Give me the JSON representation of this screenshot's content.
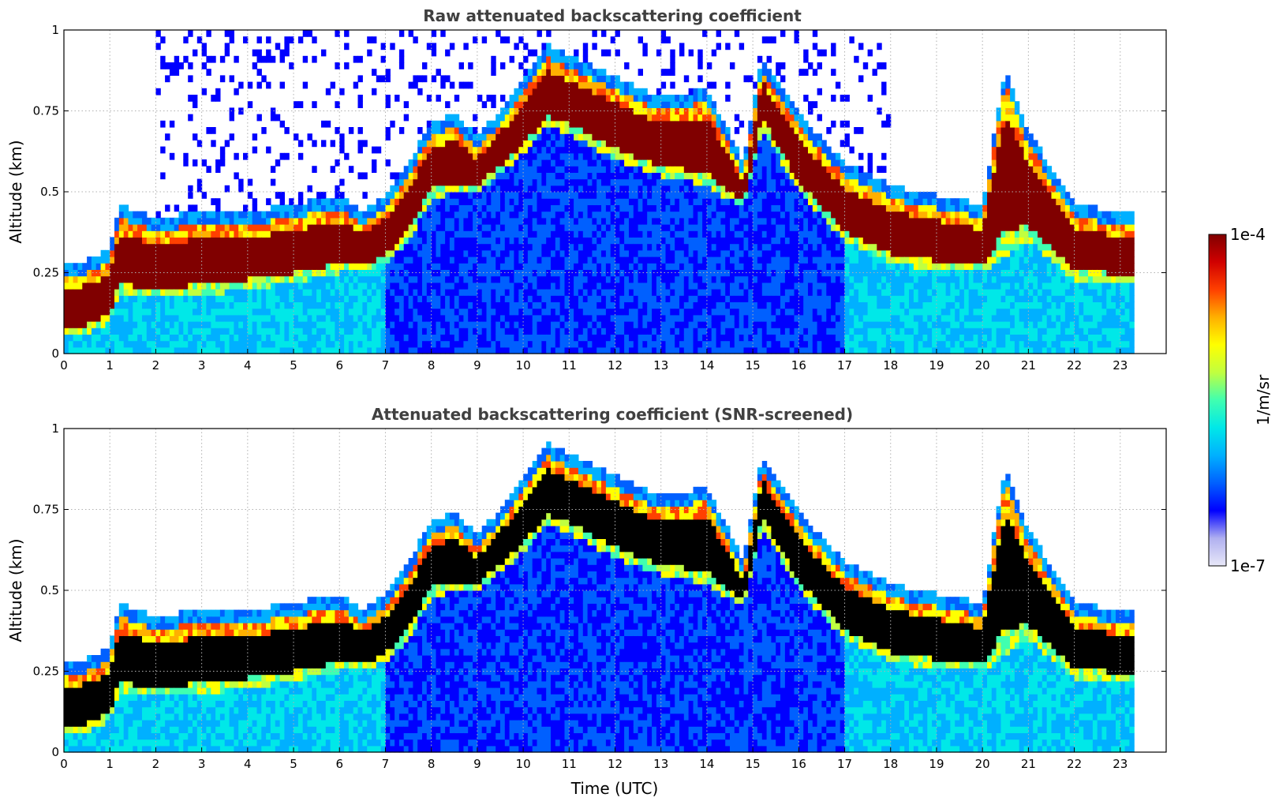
{
  "chart_data": [
    {
      "type": "heatmap",
      "title": "Raw attenuated backscattering coefficient",
      "xlabel": "",
      "ylabel": "Altitude (km)",
      "xlim": [
        0,
        24
      ],
      "ylim": [
        0,
        1
      ],
      "x_ticks": [
        "0",
        "1",
        "2",
        "3",
        "4",
        "5",
        "6",
        "7",
        "8",
        "9",
        "10",
        "11",
        "12",
        "13",
        "14",
        "15",
        "16",
        "17",
        "18",
        "19",
        "20",
        "21",
        "22",
        "23"
      ],
      "y_ticks": [
        "0",
        "0.25",
        "0.5",
        "0.75",
        "1"
      ],
      "grid": true,
      "data_end_hour": 23.3,
      "screened": false,
      "profile": {
        "hours": [
          0,
          0.5,
          1.0,
          1.2,
          2,
          3,
          4,
          5,
          6,
          6.5,
          7,
          7.5,
          8,
          8.5,
          9,
          10,
          10.5,
          11,
          12,
          13,
          14,
          14.8,
          15.2,
          16,
          17,
          18,
          19,
          20,
          20.5,
          21,
          22,
          23,
          23.3
        ],
        "layer_top_km": [
          0.23,
          0.25,
          0.28,
          0.42,
          0.38,
          0.4,
          0.4,
          0.42,
          0.45,
          0.4,
          0.45,
          0.55,
          0.68,
          0.7,
          0.63,
          0.8,
          0.92,
          0.88,
          0.82,
          0.75,
          0.78,
          0.55,
          0.88,
          0.7,
          0.55,
          0.48,
          0.45,
          0.42,
          0.85,
          0.65,
          0.42,
          0.4,
          0.4
        ],
        "layer_bottom_km": [
          0.05,
          0.06,
          0.1,
          0.18,
          0.17,
          0.18,
          0.2,
          0.22,
          0.25,
          0.25,
          0.28,
          0.35,
          0.48,
          0.5,
          0.5,
          0.62,
          0.7,
          0.68,
          0.6,
          0.55,
          0.52,
          0.45,
          0.7,
          0.5,
          0.35,
          0.28,
          0.26,
          0.25,
          0.3,
          0.35,
          0.23,
          0.22,
          0.22
        ]
      }
    },
    {
      "type": "heatmap",
      "title": "Attenuated backscattering coefficient (SNR-screened)",
      "xlabel": "Time (UTC)",
      "ylabel": "Altitude (km)",
      "xlim": [
        0,
        24
      ],
      "ylim": [
        0,
        1
      ],
      "x_ticks": [
        "0",
        "1",
        "2",
        "3",
        "4",
        "5",
        "6",
        "7",
        "8",
        "9",
        "10",
        "11",
        "12",
        "13",
        "14",
        "15",
        "16",
        "17",
        "18",
        "19",
        "20",
        "21",
        "22",
        "23"
      ],
      "y_ticks": [
        "0",
        "0.25",
        "0.5",
        "0.75",
        "1"
      ],
      "grid": true,
      "data_end_hour": 23.3,
      "screened": true,
      "profile": {
        "hours": [
          0,
          0.5,
          1.0,
          1.2,
          2,
          3,
          4,
          5,
          6,
          6.5,
          7,
          7.5,
          8,
          8.5,
          9,
          10,
          10.5,
          11,
          12,
          13,
          14,
          14.8,
          15.2,
          16,
          17,
          18,
          19,
          20,
          20.5,
          21,
          22,
          23,
          23.3
        ],
        "layer_top_km": [
          0.23,
          0.25,
          0.28,
          0.42,
          0.38,
          0.4,
          0.4,
          0.42,
          0.45,
          0.4,
          0.45,
          0.55,
          0.68,
          0.7,
          0.63,
          0.8,
          0.92,
          0.88,
          0.82,
          0.75,
          0.78,
          0.55,
          0.88,
          0.7,
          0.55,
          0.48,
          0.45,
          0.42,
          0.85,
          0.65,
          0.42,
          0.4,
          0.4
        ],
        "layer_bottom_km": [
          0.05,
          0.06,
          0.1,
          0.18,
          0.17,
          0.18,
          0.2,
          0.22,
          0.25,
          0.25,
          0.28,
          0.35,
          0.48,
          0.5,
          0.5,
          0.62,
          0.7,
          0.68,
          0.6,
          0.55,
          0.52,
          0.45,
          0.7,
          0.5,
          0.35,
          0.28,
          0.26,
          0.25,
          0.3,
          0.35,
          0.23,
          0.22,
          0.22
        ]
      }
    }
  ],
  "colorbar": {
    "label": "1/m/sr",
    "max_label": "1e-4",
    "min_label": "1e-7",
    "colormap": "jet",
    "colors": [
      "#e8e8f8",
      "#b0b0f0",
      "#0000ff",
      "#0060ff",
      "#00b0ff",
      "#00e8e8",
      "#40ffb0",
      "#c0ff40",
      "#ffff00",
      "#ffb000",
      "#ff4000",
      "#d00000",
      "#800000"
    ]
  }
}
